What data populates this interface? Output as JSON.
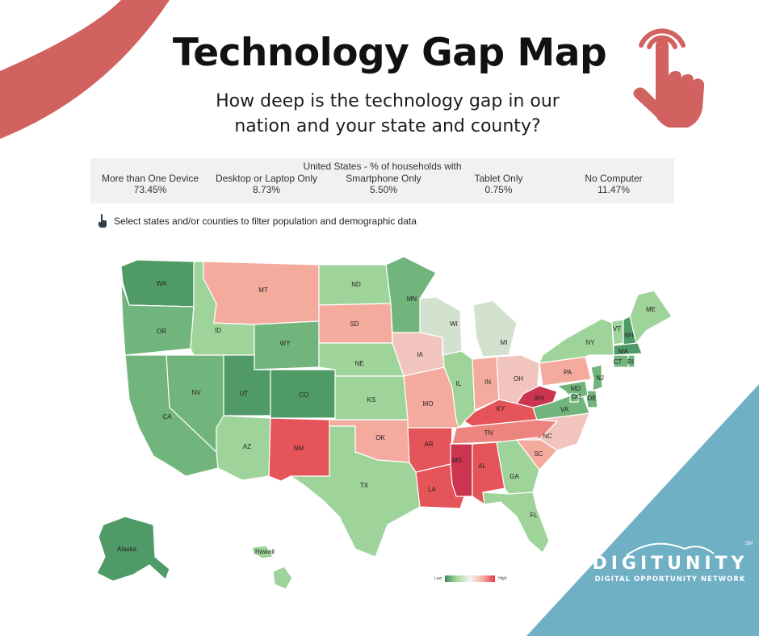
{
  "page": {
    "title": "Technology Gap Map",
    "subtitle_line1": "How deep is the technology gap in our",
    "subtitle_line2": "nation and your state and county?"
  },
  "stats": {
    "heading": "United States - % of households with",
    "items": [
      {
        "label": "More than One Device",
        "value": "73.45%"
      },
      {
        "label": "Desktop or Laptop Only",
        "value": "8.73%"
      },
      {
        "label": "Smartphone Only",
        "value": "5.50%"
      },
      {
        "label": "Tablet Only",
        "value": "0.75%"
      },
      {
        "label": "No Computer",
        "value": "11.47%"
      }
    ]
  },
  "hint": {
    "text": "Select states and/or counties to filter population and demographic data"
  },
  "map": {
    "colors": {
      "dark_green": "#4f9a67",
      "mid_green": "#72b57c",
      "light_green": "#9ed49a",
      "pale_green": "#c0e2b8",
      "gray": "#d3e1cf",
      "pale_red": "#f1c5bd",
      "light_red": "#f4ab9e",
      "mid_red": "#ee8480",
      "red": "#e55459",
      "dark_red": "#cc3550"
    },
    "states": [
      {
        "abbr": "WA",
        "color": "dark_green"
      },
      {
        "abbr": "OR",
        "color": "mid_green"
      },
      {
        "abbr": "CA",
        "color": "mid_green"
      },
      {
        "abbr": "ID",
        "color": "light_green"
      },
      {
        "abbr": "NV",
        "color": "mid_green"
      },
      {
        "abbr": "MT",
        "color": "light_red"
      },
      {
        "abbr": "WY",
        "color": "mid_green"
      },
      {
        "abbr": "UT",
        "color": "dark_green"
      },
      {
        "abbr": "CO",
        "color": "dark_green"
      },
      {
        "abbr": "AZ",
        "color": "light_green"
      },
      {
        "abbr": "NM",
        "color": "red"
      },
      {
        "abbr": "ND",
        "color": "light_green"
      },
      {
        "abbr": "SD",
        "color": "light_red"
      },
      {
        "abbr": "NE",
        "color": "light_green"
      },
      {
        "abbr": "KS",
        "color": "light_green"
      },
      {
        "abbr": "OK",
        "color": "light_red"
      },
      {
        "abbr": "TX",
        "color": "light_green"
      },
      {
        "abbr": "MN",
        "color": "mid_green"
      },
      {
        "abbr": "IA",
        "color": "pale_red"
      },
      {
        "abbr": "MO",
        "color": "light_red"
      },
      {
        "abbr": "AR",
        "color": "red"
      },
      {
        "abbr": "LA",
        "color": "red"
      },
      {
        "abbr": "WI",
        "color": "gray"
      },
      {
        "abbr": "IL",
        "color": "light_green"
      },
      {
        "abbr": "MI",
        "color": "gray"
      },
      {
        "abbr": "IN",
        "color": "light_red"
      },
      {
        "abbr": "OH",
        "color": "pale_red"
      },
      {
        "abbr": "KY",
        "color": "red"
      },
      {
        "abbr": "TN",
        "color": "mid_red"
      },
      {
        "abbr": "MS",
        "color": "dark_red"
      },
      {
        "abbr": "AL",
        "color": "red"
      },
      {
        "abbr": "GA",
        "color": "light_green"
      },
      {
        "abbr": "FL",
        "color": "light_green"
      },
      {
        "abbr": "SC",
        "color": "light_red"
      },
      {
        "abbr": "NC",
        "color": "pale_red"
      },
      {
        "abbr": "VA",
        "color": "mid_green"
      },
      {
        "abbr": "WV",
        "color": "dark_red"
      },
      {
        "abbr": "PA",
        "color": "light_red"
      },
      {
        "abbr": "NY",
        "color": "light_green"
      },
      {
        "abbr": "VT",
        "color": "light_green"
      },
      {
        "abbr": "NH",
        "color": "dark_green"
      },
      {
        "abbr": "ME",
        "color": "light_green"
      },
      {
        "abbr": "MA",
        "color": "dark_green"
      },
      {
        "abbr": "CT",
        "color": "mid_green"
      },
      {
        "abbr": "RI",
        "color": "mid_green"
      },
      {
        "abbr": "NJ",
        "color": "mid_green"
      },
      {
        "abbr": "DE",
        "color": "mid_green"
      },
      {
        "abbr": "MD",
        "color": "mid_green"
      },
      {
        "abbr": "DC",
        "color": "mid_green"
      },
      {
        "abbr": "Alaska",
        "color": "dark_green"
      },
      {
        "abbr": "Hawaii",
        "color": "light_green"
      }
    ]
  },
  "legend": {
    "low": "Low",
    "high": "High"
  },
  "logo": {
    "name": "DIGITUNITY",
    "tagline": "DIGITAL OPPORTUNITY NETWORK",
    "mark": "SM"
  },
  "palette": {
    "accent_red": "#d1625f",
    "accent_blue": "#6fb0c5"
  }
}
